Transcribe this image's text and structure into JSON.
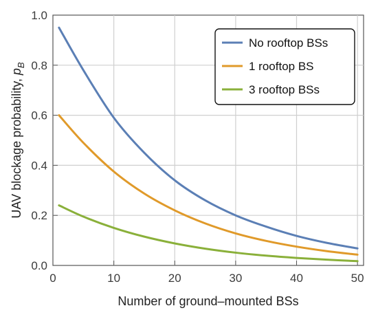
{
  "chart_data": {
    "type": "line",
    "xlabel": "Number of ground–mounted BSs",
    "ylabel_main": "UAV blockage probability, ",
    "ylabel_symbol": "p",
    "ylabel_subscript": "B",
    "xlim": [
      0,
      51
    ],
    "ylim": [
      0,
      1.0
    ],
    "x_ticks": [
      0,
      10,
      20,
      30,
      40,
      50
    ],
    "y_ticks": [
      0.0,
      0.2,
      0.4,
      0.6,
      0.8,
      1.0
    ],
    "y_tick_labels": [
      "0.0",
      "0.2",
      "0.4",
      "0.6",
      "0.8",
      "1.0"
    ],
    "grid": true,
    "legend_position": "top-right",
    "x": [
      1,
      5,
      10,
      15,
      20,
      25,
      30,
      35,
      40,
      45,
      50
    ],
    "series": [
      {
        "name": "No rooftop BSs",
        "color": "#5b7fb5",
        "values": [
          0.95,
          0.78,
          0.59,
          0.45,
          0.34,
          0.26,
          0.2,
          0.155,
          0.118,
          0.09,
          0.068
        ]
      },
      {
        "name": "1 rooftop BS",
        "color": "#e09a2a",
        "values": [
          0.6,
          0.49,
          0.375,
          0.287,
          0.22,
          0.168,
          0.128,
          0.098,
          0.075,
          0.057,
          0.043
        ]
      },
      {
        "name": "3 rooftop BSs",
        "color": "#8ab03a",
        "values": [
          0.24,
          0.195,
          0.15,
          0.115,
          0.088,
          0.067,
          0.051,
          0.039,
          0.03,
          0.023,
          0.017
        ]
      }
    ]
  }
}
